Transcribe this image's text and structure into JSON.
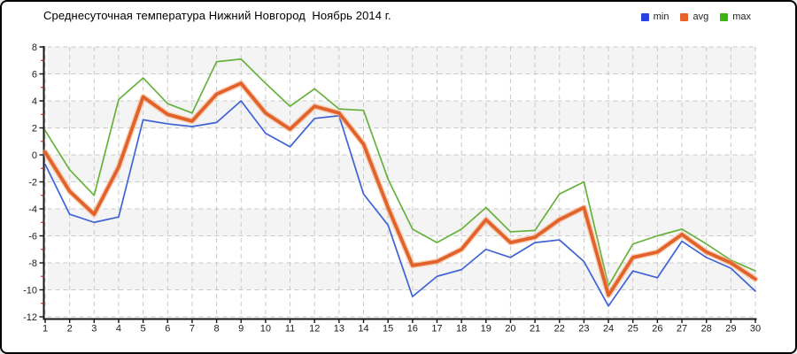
{
  "style": {
    "background": "#ffffff",
    "border_color": "#000000",
    "band_color": "#f4f4f4",
    "grid_color": "#c9c9c9",
    "axis_color": "#161616",
    "minor_tick_color": "#cc3322",
    "label_color": "#1a1a1a",
    "avg_halo_color": "#f5ab7c"
  },
  "chart_data": {
    "type": "line",
    "title": "Среднесуточная температура Нижний Новгород  Ноябрь 2014 г.",
    "xlabel": "",
    "ylabel": "",
    "ylim": [
      -12,
      8
    ],
    "yticks": [
      8,
      6,
      4,
      2,
      0,
      -2,
      -4,
      -6,
      -8,
      -10,
      -12
    ],
    "grid": "dashed",
    "banding": "alternating horizontal stripes",
    "legend_position": "top-right",
    "x": [
      1,
      2,
      3,
      4,
      5,
      6,
      7,
      8,
      9,
      10,
      11,
      12,
      13,
      14,
      15,
      16,
      17,
      18,
      19,
      20,
      21,
      22,
      23,
      24,
      25,
      26,
      27,
      28,
      29,
      30
    ],
    "series": [
      {
        "name": "min",
        "color": "#3f63d6",
        "legend_color": "#2643e0",
        "line_width": 1.7,
        "values": [
          -0.7,
          -4.4,
          -5.0,
          -4.6,
          2.6,
          2.3,
          2.1,
          2.4,
          4.0,
          1.6,
          0.6,
          2.7,
          2.9,
          -2.9,
          -5.2,
          -10.5,
          -9.0,
          -8.5,
          -7.0,
          -7.6,
          -6.5,
          -6.3,
          -7.9,
          -11.2,
          -8.6,
          -9.1,
          -6.4,
          -7.6,
          -8.4,
          -10.1
        ]
      },
      {
        "name": "avg",
        "color": "#e2622b",
        "legend_color": "#e8622a",
        "line_width": 3.8,
        "values": [
          0.2,
          -2.7,
          -4.4,
          -0.9,
          4.3,
          3.0,
          2.5,
          4.5,
          5.3,
          3.1,
          1.9,
          3.6,
          3.1,
          0.8,
          -3.9,
          -8.2,
          -7.9,
          -7.0,
          -4.8,
          -6.5,
          -6.1,
          -4.8,
          -3.9,
          -10.4,
          -7.6,
          -7.2,
          -5.9,
          -7.2,
          -8.0,
          -9.2
        ]
      },
      {
        "name": "max",
        "color": "#67b23c",
        "legend_color": "#3eb414",
        "line_width": 1.7,
        "values": [
          1.8,
          -1.1,
          -3.0,
          4.1,
          5.7,
          3.8,
          3.1,
          6.9,
          7.1,
          5.3,
          3.6,
          4.9,
          3.4,
          3.3,
          -1.8,
          -5.5,
          -6.5,
          -5.5,
          -3.9,
          -5.7,
          -5.6,
          -2.9,
          -2.0,
          -9.7,
          -6.6,
          -6.0,
          -5.5,
          -6.6,
          -7.8,
          -8.6
        ]
      }
    ]
  }
}
